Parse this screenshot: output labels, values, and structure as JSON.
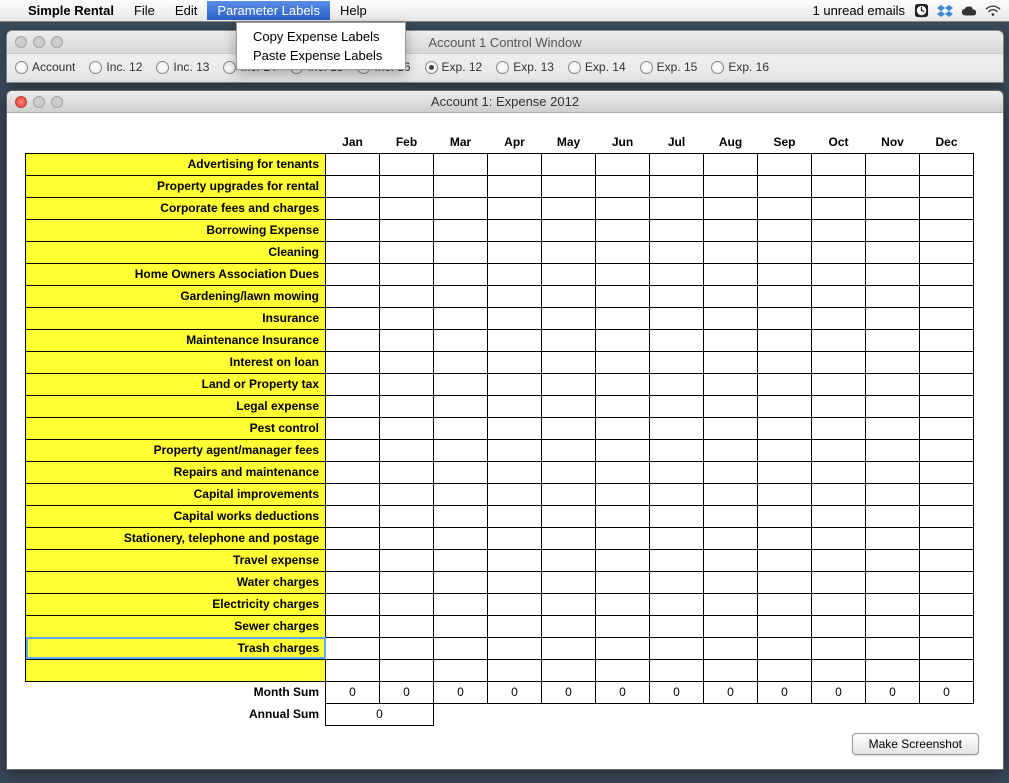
{
  "menubar": {
    "app_name": "Simple Rental",
    "items": [
      "File",
      "Edit",
      "Parameter Labels",
      "Help"
    ],
    "active_index": 2,
    "right_text": "1 unread emails"
  },
  "dropdown": {
    "items": [
      "Copy Expense Labels",
      "Paste Expense Labels"
    ]
  },
  "control_window": {
    "title": "Account 1 Control Window",
    "radios": [
      "Account",
      "Inc. 12",
      "Inc. 13",
      "Inc. 14",
      "Inc. 15",
      "Inc. 16",
      "Exp. 12",
      "Exp. 13",
      "Exp. 14",
      "Exp. 15",
      "Exp. 16"
    ],
    "selected_index": 6
  },
  "expense_window": {
    "title": "Account 1: Expense 2012",
    "months": [
      "Jan",
      "Feb",
      "Mar",
      "Apr",
      "May",
      "Jun",
      "Jul",
      "Aug",
      "Sep",
      "Oct",
      "Nov",
      "Dec"
    ],
    "rows": [
      "Advertising for tenants",
      "Property upgrades for rental",
      "Corporate fees and charges",
      "Borrowing Expense",
      "Cleaning",
      "Home Owners Association Dues",
      "Gardening/lawn mowing",
      "Insurance",
      "Maintenance Insurance",
      "Interest on loan",
      "Land or Property tax",
      "Legal expense",
      "Pest control",
      "Property agent/manager fees",
      "Repairs and maintenance",
      "Capital improvements",
      "Capital works deductions",
      "Stationery, telephone and postage",
      "Travel expense",
      "Water charges",
      "Electricity charges",
      "Sewer charges",
      "Trash charges"
    ],
    "selected_row_index": 22,
    "blank_trailing_rows": 1,
    "month_sum_label": "Month Sum",
    "month_sums": [
      "0",
      "0",
      "0",
      "0",
      "0",
      "0",
      "0",
      "0",
      "0",
      "0",
      "0",
      "0"
    ],
    "annual_sum_label": "Annual Sum",
    "annual_sum": "0",
    "screenshot_button": "Make Screenshot"
  },
  "colors": {
    "row_label_bg": "#ffff33",
    "menu_active_bg": "#2a63d8",
    "border": "#000000"
  }
}
